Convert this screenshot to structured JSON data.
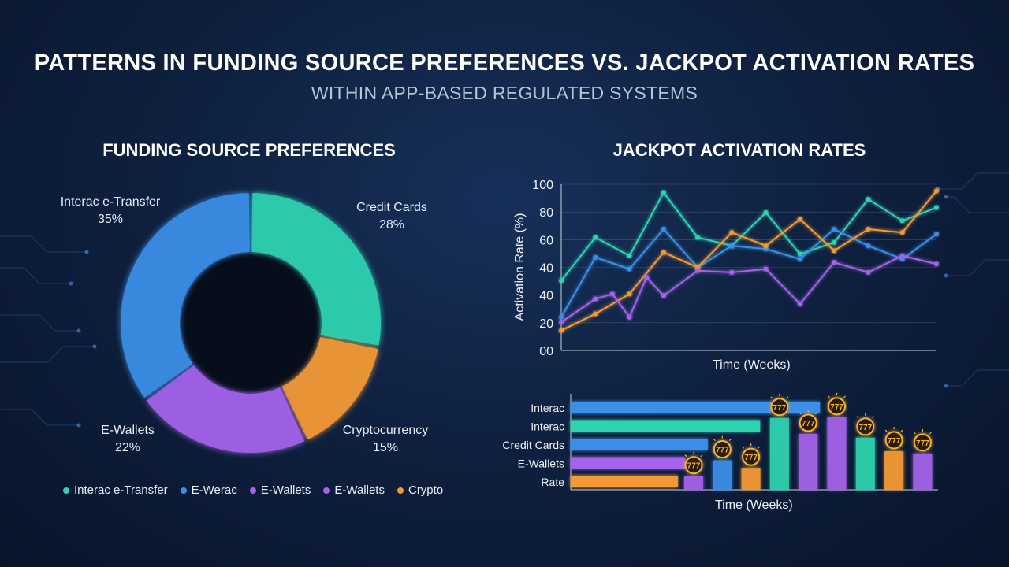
{
  "header": {
    "title": "PATTERNS IN FUNDING SOURCE PREFERENCES VS. JACKPOT ACTIVATION RATES",
    "subtitle": "WITHIN APP-BASED REGULATED SYSTEMS"
  },
  "colors": {
    "teal": "#2ed3b0",
    "blue": "#3a8fe6",
    "purple": "#a463ea",
    "orange": "#f49a34",
    "gold": "#f5b335"
  },
  "chart_data": [
    {
      "type": "pie",
      "title": "FUNDING SOURCE PREFERENCES",
      "slices": [
        {
          "label": "Credit Cards",
          "value": 28,
          "value_label": "28%",
          "color": "#2ed3b0"
        },
        {
          "label": "Cryptocurrency",
          "value": 15,
          "value_label": "15%",
          "color": "#f49a34"
        },
        {
          "label": "E-Wallets",
          "value": 22,
          "value_label": "22%",
          "color": "#a463ea"
        },
        {
          "label": "Interac e-Transfer",
          "value": 35,
          "value_label": "35%",
          "color": "#3a8fe6"
        }
      ],
      "legend": [
        {
          "label": "Interac e-Transfer",
          "color": "#2ed3b0"
        },
        {
          "label": "E-Werac",
          "color": "#3a8fe6"
        },
        {
          "label": "E-Wallets",
          "color": "#a463ea"
        },
        {
          "label": "E-Wallets",
          "color": "#a463ea"
        },
        {
          "label": "Crypto",
          "color": "#f49a34"
        }
      ],
      "legend_position": "bottom"
    },
    {
      "type": "line",
      "title": "JACKPOT ACTIVATION RATES",
      "xlabel": "Time (Weeks)",
      "ylabel": "Activation Rate (%)",
      "yticks": [
        "00",
        "20",
        "40",
        "40",
        "60",
        "80",
        "100"
      ],
      "grid": true,
      "series": [
        {
          "color": "#2ed3b0",
          "x": [
            1,
            2,
            3,
            4,
            5,
            6,
            7,
            8,
            9,
            10,
            11,
            12
          ],
          "values": [
            42,
            68,
            57,
            95,
            68,
            63,
            83,
            58,
            65,
            91,
            78,
            86
          ]
        },
        {
          "color": "#3a8fe6",
          "x": [
            1,
            2,
            3,
            4,
            5,
            6,
            7,
            8,
            9,
            10,
            11,
            12
          ],
          "values": [
            20,
            56,
            49,
            73,
            50,
            63,
            61,
            55,
            73,
            63,
            55,
            70
          ]
        },
        {
          "color": "#f49a34",
          "x": [
            1,
            2,
            3,
            4,
            5,
            6,
            7,
            8,
            9,
            10,
            11,
            12
          ],
          "values": [
            12,
            22,
            34,
            59,
            50,
            71,
            63,
            79,
            60,
            73,
            71,
            96
          ]
        },
        {
          "color": "#a463ea",
          "x": [
            1,
            2,
            2.5,
            3,
            3.5,
            4,
            5,
            6,
            7,
            8,
            9,
            10,
            11,
            12
          ],
          "values": [
            17,
            31,
            34,
            20,
            44,
            33,
            48,
            47,
            49,
            28,
            53,
            47,
            57,
            52
          ]
        }
      ]
    },
    {
      "type": "bar",
      "xlabel": "Time (Weeks)",
      "categories": [
        "Interac",
        "Interac",
        "Credit Cards",
        "E-Wallets",
        "Rate"
      ],
      "horizontal_bars": [
        {
          "label": "Interac",
          "value": 100,
          "color": "#3a8fe6"
        },
        {
          "label": "Interac",
          "value": 76,
          "color": "#2ed3b0"
        },
        {
          "label": "Credit Cards",
          "value": 55,
          "color": "#3a8fe6"
        },
        {
          "label": "E-Wallets",
          "value": 46,
          "color": "#a463ea"
        },
        {
          "label": "Rate",
          "value": 43,
          "color": "#f49a34"
        }
      ],
      "vertical_bars": [
        {
          "value": 18,
          "color": "#a463ea",
          "badge": "777"
        },
        {
          "value": 39,
          "color": "#3a8fe6",
          "badge": "777"
        },
        {
          "value": 29,
          "color": "#f49a34",
          "badge": "777"
        },
        {
          "value": 95,
          "color": "#2ed3b0",
          "badge": "777"
        },
        {
          "value": 74,
          "color": "#a463ea",
          "badge": "777"
        },
        {
          "value": 96,
          "color": "#a463ea",
          "badge": "777"
        },
        {
          "value": 69,
          "color": "#2ed3b0",
          "badge": "777"
        },
        {
          "value": 51,
          "color": "#f49a34",
          "badge": "777"
        },
        {
          "value": 48,
          "color": "#a463ea",
          "badge": "777"
        }
      ]
    }
  ]
}
